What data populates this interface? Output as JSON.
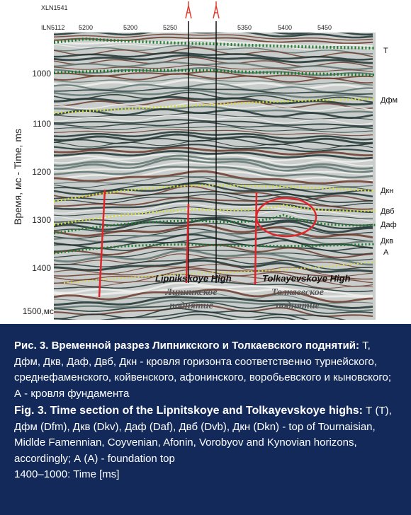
{
  "figure": {
    "header": [
      "XLN1541",
      "ILN5112"
    ],
    "trace_labels": [
      "5200",
      "5200",
      "5250",
      "5350",
      "5400",
      "5450"
    ],
    "y_axis_title": "Время, мс - Time, ms",
    "y_labels": [
      "1000",
      "1100",
      "1200",
      "1300",
      "1400",
      "1500,мс"
    ],
    "horizons": [
      "Т",
      "Дфм",
      "Дкн",
      "Двб",
      "Даф",
      "Дкв",
      "А"
    ],
    "annotations": [
      "Lipnikskoye High",
      "Липникское поднятие",
      "Tolkayevskoye High",
      "Толкаевское поднятие"
    ]
  },
  "caption": {
    "ru": {
      "label": "Рис. 3. Временной разрез Липникского и Толкаевского поднятий:",
      "text": "Т, Дфм, Дкв, Даф, Двб, Дкн - кровля горизонта соответственно турнейского, среднефаменского, койвенского, афонинского, воробьевского и кыновского; А - кровля фундамента"
    },
    "en": {
      "label": "Fig. 3. Time section of the Lipnitskoye and Tolkayevskoye highs:",
      "text": "Т (T), Дфм (Dfm), Дкв (Dkv), Даф (Daf), Двб (Dvb), Дкн (Dkn) - top of Tournaisian, Midlde Famennian, Coyvenian, Afonin, Vorobyov and Kynovian horizons, accordingly; А (A) - foundation top",
      "note": "1400–1000: Time [ms]"
    }
  }
}
